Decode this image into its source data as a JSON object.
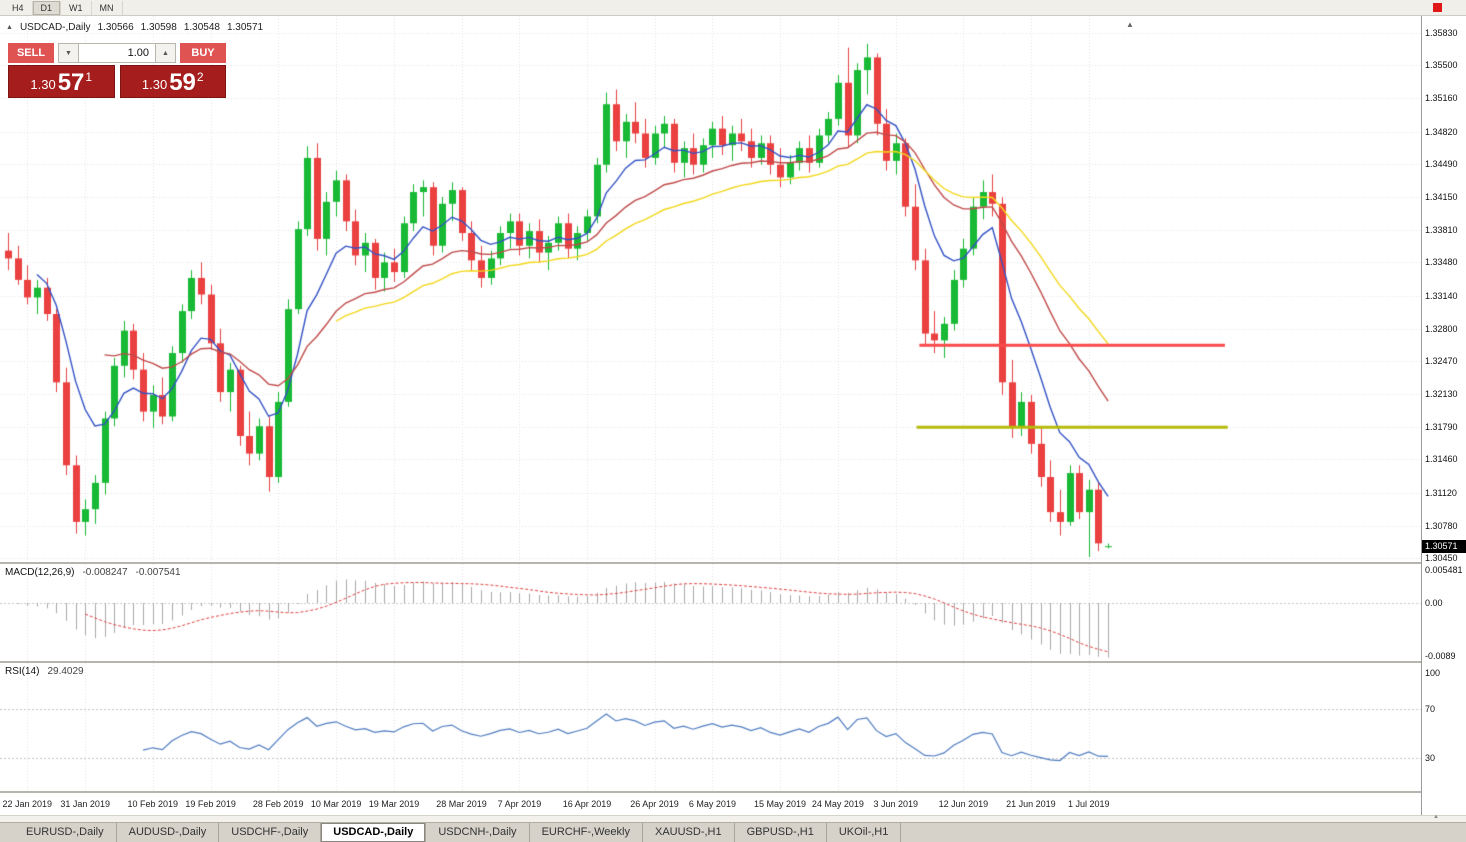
{
  "toolbar": {
    "timeframes": [
      "H4",
      "D1",
      "W1",
      "MN"
    ]
  },
  "chart_header": {
    "symbol": "USDCAD-,Daily",
    "open": "1.30566",
    "high": "1.30598",
    "low": "1.30548",
    "close": "1.30571"
  },
  "trade_panel": {
    "sell_label": "SELL",
    "buy_label": "BUY",
    "volume": "1.00",
    "sell_price": {
      "figure": "1.30",
      "pips": "57",
      "pipette": "1"
    },
    "buy_price": {
      "figure": "1.30",
      "pips": "59",
      "pipette": "2"
    }
  },
  "price_axis": {
    "labels": [
      "1.35830",
      "1.35500",
      "1.35160",
      "1.34820",
      "1.34490",
      "1.34150",
      "1.33810",
      "1.33480",
      "1.33140",
      "1.32800",
      "1.32470",
      "1.32130",
      "1.31790",
      "1.31460",
      "1.31120",
      "1.30780",
      "1.30450"
    ],
    "current": "1.30571"
  },
  "macd_panel": {
    "name": "MACD(12,26,9)",
    "value": "-0.008247",
    "signal": "-0.007541",
    "axis_top": "0.005481",
    "axis_zero": "0.00",
    "axis_bottom": "-0.0089"
  },
  "rsi_panel": {
    "name": "RSI(14)",
    "value": "29.4029",
    "axis": [
      "100",
      "70",
      "30"
    ]
  },
  "tabs": [
    {
      "label": "EURUSD-,Daily",
      "active": false
    },
    {
      "label": "AUDUSD-,Daily",
      "active": false
    },
    {
      "label": "USDCHF-,Daily",
      "active": false
    },
    {
      "label": "USDCAD-,Daily",
      "active": true
    },
    {
      "label": "USDCNH-,Daily",
      "active": false
    },
    {
      "label": "EURCHF-,Weekly",
      "active": false
    },
    {
      "label": "XAUUSD-,H1",
      "active": false
    },
    {
      "label": "GBPUSD-,H1",
      "active": false
    },
    {
      "label": "UKOil-,H1",
      "active": false
    }
  ],
  "colors": {
    "up": "#18b934",
    "down": "#ea4040",
    "macd_hist": "#a9a9a9",
    "macd_signal": "#e04040",
    "rsi_line": "#4f7cc0",
    "accent_red": "#e11818",
    "badge_bg": "#000000",
    "panel_red": "#a51d1d",
    "button_red": "#e05353"
  },
  "chart_data": {
    "type": "candlestick",
    "symbol": "USDCAD",
    "timeframe": "Daily",
    "price_range": [
      1.3045,
      1.3583
    ],
    "candles": [
      [
        1.336,
        1.3378,
        1.334,
        1.3352
      ],
      [
        1.3352,
        1.3365,
        1.3325,
        1.333
      ],
      [
        1.333,
        1.3345,
        1.3305,
        1.3312
      ],
      [
        1.3312,
        1.333,
        1.3295,
        1.3322
      ],
      [
        1.3322,
        1.3332,
        1.3288,
        1.3295
      ],
      [
        1.3295,
        1.33,
        1.3215,
        1.3225
      ],
      [
        1.3225,
        1.324,
        1.313,
        1.314
      ],
      [
        1.314,
        1.315,
        1.307,
        1.3082
      ],
      [
        1.3082,
        1.3105,
        1.3068,
        1.3095
      ],
      [
        1.3095,
        1.313,
        1.308,
        1.3122
      ],
      [
        1.3122,
        1.3195,
        1.311,
        1.3188
      ],
      [
        1.3188,
        1.325,
        1.318,
        1.3242
      ],
      [
        1.3242,
        1.3288,
        1.323,
        1.3278
      ],
      [
        1.3278,
        1.3285,
        1.3228,
        1.3238
      ],
      [
        1.3238,
        1.3255,
        1.3185,
        1.3195
      ],
      [
        1.3195,
        1.3222,
        1.3178,
        1.3212
      ],
      [
        1.3212,
        1.323,
        1.3182,
        1.319
      ],
      [
        1.319,
        1.3262,
        1.3185,
        1.3255
      ],
      [
        1.3255,
        1.3305,
        1.3245,
        1.3298
      ],
      [
        1.3298,
        1.334,
        1.329,
        1.3332
      ],
      [
        1.3332,
        1.3348,
        1.3305,
        1.3315
      ],
      [
        1.3315,
        1.3325,
        1.3258,
        1.3265
      ],
      [
        1.3265,
        1.328,
        1.3205,
        1.3215
      ],
      [
        1.3215,
        1.3245,
        1.3195,
        1.3238
      ],
      [
        1.3238,
        1.3242,
        1.316,
        1.317
      ],
      [
        1.317,
        1.3195,
        1.314,
        1.3152
      ],
      [
        1.3152,
        1.3188,
        1.3145,
        1.318
      ],
      [
        1.318,
        1.319,
        1.3113,
        1.3128
      ],
      [
        1.3128,
        1.3215,
        1.3122,
        1.3205
      ],
      [
        1.3205,
        1.331,
        1.32,
        1.33
      ],
      [
        1.33,
        1.339,
        1.3295,
        1.3382
      ],
      [
        1.3382,
        1.3467,
        1.3375,
        1.3455
      ],
      [
        1.3455,
        1.347,
        1.336,
        1.3372
      ],
      [
        1.3372,
        1.342,
        1.3355,
        1.341
      ],
      [
        1.341,
        1.3442,
        1.3395,
        1.3432
      ],
      [
        1.3432,
        1.3438,
        1.338,
        1.339
      ],
      [
        1.339,
        1.3402,
        1.3345,
        1.3355
      ],
      [
        1.3355,
        1.3378,
        1.3338,
        1.3368
      ],
      [
        1.3368,
        1.3372,
        1.332,
        1.3332
      ],
      [
        1.3332,
        1.3358,
        1.3318,
        1.3348
      ],
      [
        1.3348,
        1.3362,
        1.3328,
        1.3338
      ],
      [
        1.3338,
        1.3395,
        1.3332,
        1.3388
      ],
      [
        1.3388,
        1.3428,
        1.338,
        1.342
      ],
      [
        1.342,
        1.3432,
        1.3395,
        1.3425
      ],
      [
        1.3425,
        1.343,
        1.3355,
        1.3365
      ],
      [
        1.3365,
        1.3415,
        1.3358,
        1.3408
      ],
      [
        1.3408,
        1.343,
        1.339,
        1.3422
      ],
      [
        1.3422,
        1.3425,
        1.337,
        1.3378
      ],
      [
        1.3378,
        1.339,
        1.334,
        1.335
      ],
      [
        1.335,
        1.3365,
        1.3322,
        1.3332
      ],
      [
        1.3332,
        1.336,
        1.3325,
        1.3352
      ],
      [
        1.3352,
        1.3385,
        1.3345,
        1.3378
      ],
      [
        1.3378,
        1.3398,
        1.3362,
        1.339
      ],
      [
        1.339,
        1.3398,
        1.3355,
        1.3365
      ],
      [
        1.3365,
        1.3388,
        1.3352,
        1.338
      ],
      [
        1.338,
        1.3392,
        1.3348,
        1.3358
      ],
      [
        1.3358,
        1.3375,
        1.334,
        1.3368
      ],
      [
        1.3368,
        1.3395,
        1.336,
        1.3388
      ],
      [
        1.3388,
        1.3398,
        1.3352,
        1.3362
      ],
      [
        1.3362,
        1.3385,
        1.335,
        1.3378
      ],
      [
        1.3378,
        1.3402,
        1.337,
        1.3395
      ],
      [
        1.3395,
        1.3455,
        1.3388,
        1.3448
      ],
      [
        1.3448,
        1.3522,
        1.344,
        1.351
      ],
      [
        1.351,
        1.3525,
        1.3462,
        1.3472
      ],
      [
        1.3472,
        1.35,
        1.3455,
        1.3492
      ],
      [
        1.3492,
        1.3512,
        1.347,
        1.348
      ],
      [
        1.348,
        1.3495,
        1.3445,
        1.3455
      ],
      [
        1.3455,
        1.3488,
        1.3448,
        1.348
      ],
      [
        1.348,
        1.3498,
        1.3465,
        1.349
      ],
      [
        1.349,
        1.3495,
        1.344,
        1.345
      ],
      [
        1.345,
        1.3472,
        1.3435,
        1.3465
      ],
      [
        1.3465,
        1.348,
        1.3438,
        1.3448
      ],
      [
        1.3448,
        1.3475,
        1.344,
        1.3468
      ],
      [
        1.3468,
        1.3492,
        1.3455,
        1.3485
      ],
      [
        1.3485,
        1.3498,
        1.3458,
        1.3468
      ],
      [
        1.3468,
        1.3488,
        1.3452,
        1.348
      ],
      [
        1.348,
        1.3495,
        1.3462,
        1.3472
      ],
      [
        1.3472,
        1.3485,
        1.3445,
        1.3455
      ],
      [
        1.3455,
        1.3478,
        1.3448,
        1.347
      ],
      [
        1.347,
        1.3478,
        1.3438,
        1.3448
      ],
      [
        1.3448,
        1.3465,
        1.3425,
        1.3435
      ],
      [
        1.3435,
        1.3458,
        1.3428,
        1.345
      ],
      [
        1.345,
        1.3472,
        1.3442,
        1.3465
      ],
      [
        1.3465,
        1.3478,
        1.344,
        1.345
      ],
      [
        1.345,
        1.3485,
        1.3445,
        1.3478
      ],
      [
        1.3478,
        1.3502,
        1.347,
        1.3495
      ],
      [
        1.3495,
        1.354,
        1.3488,
        1.3532
      ],
      [
        1.3532,
        1.3568,
        1.3465,
        1.3478
      ],
      [
        1.3478,
        1.3552,
        1.347,
        1.3545
      ],
      [
        1.3545,
        1.3572,
        1.352,
        1.3558
      ],
      [
        1.3558,
        1.3562,
        1.3478,
        1.349
      ],
      [
        1.349,
        1.3505,
        1.3442,
        1.3452
      ],
      [
        1.3452,
        1.348,
        1.3438,
        1.347
      ],
      [
        1.347,
        1.3475,
        1.3395,
        1.3405
      ],
      [
        1.3405,
        1.3428,
        1.334,
        1.335
      ],
      [
        1.335,
        1.3362,
        1.3262,
        1.3275
      ],
      [
        1.3275,
        1.3298,
        1.3255,
        1.3268
      ],
      [
        1.3268,
        1.3292,
        1.325,
        1.3285
      ],
      [
        1.3285,
        1.334,
        1.3278,
        1.333
      ],
      [
        1.333,
        1.3372,
        1.3322,
        1.3362
      ],
      [
        1.3362,
        1.3415,
        1.3355,
        1.3405
      ],
      [
        1.3405,
        1.3432,
        1.3392,
        1.342
      ],
      [
        1.342,
        1.3438,
        1.3395,
        1.3408
      ],
      [
        1.3408,
        1.3415,
        1.3212,
        1.3225
      ],
      [
        1.3225,
        1.3248,
        1.3168,
        1.318
      ],
      [
        1.318,
        1.3215,
        1.317,
        1.3205
      ],
      [
        1.3205,
        1.3212,
        1.3152,
        1.3162
      ],
      [
        1.3162,
        1.3178,
        1.3118,
        1.3128
      ],
      [
        1.3128,
        1.3145,
        1.3082,
        1.3092
      ],
      [
        1.3092,
        1.3115,
        1.3068,
        1.3082
      ],
      [
        1.3082,
        1.314,
        1.3078,
        1.3132
      ],
      [
        1.3132,
        1.314,
        1.3085,
        1.3092
      ],
      [
        1.3092,
        1.3125,
        1.3046,
        1.3115
      ],
      [
        1.3115,
        1.3122,
        1.3052,
        1.306
      ],
      [
        1.30566,
        1.30598,
        1.30548,
        1.30571
      ]
    ],
    "date_ticks": [
      {
        "index": 2,
        "label": "22 Jan 2019"
      },
      {
        "index": 8,
        "label": "31 Jan 2019"
      },
      {
        "index": 15,
        "label": "10 Feb 2019"
      },
      {
        "index": 21,
        "label": "19 Feb 2019"
      },
      {
        "index": 28,
        "label": "28 Feb 2019"
      },
      {
        "index": 34,
        "label": "10 Mar 2019"
      },
      {
        "index": 40,
        "label": "19 Mar 2019"
      },
      {
        "index": 47,
        "label": "28 Mar 2019"
      },
      {
        "index": 53,
        "label": "7 Apr 2019"
      },
      {
        "index": 60,
        "label": "16 Apr 2019"
      },
      {
        "index": 67,
        "label": "26 Apr 2019"
      },
      {
        "index": 73,
        "label": "6 May 2019"
      },
      {
        "index": 80,
        "label": "15 May 2019"
      },
      {
        "index": 86,
        "label": "24 May 2019"
      },
      {
        "index": 92,
        "label": "3 Jun 2019"
      },
      {
        "index": 99,
        "label": "12 Jun 2019"
      },
      {
        "index": 106,
        "label": "21 Jun 2019"
      },
      {
        "index": 112,
        "label": "1 Jul 2019"
      }
    ],
    "moving_averages": [
      {
        "type": "ema",
        "period": 8,
        "start": 3,
        "color": "#3352c4"
      },
      {
        "type": "ema",
        "period": 21,
        "start": 10,
        "color": "#c04a4a"
      },
      {
        "type": "ema",
        "period": 34,
        "start": 34,
        "color": "#f2d71b"
      }
    ],
    "hlines": [
      {
        "price": 1.3263,
        "color": "#fa4b4b",
        "thickness": 3,
        "x1_frac": 0.647,
        "x2_frac": 0.862
      },
      {
        "price": 1.3179,
        "color": "#b5bb0b",
        "thickness": 3,
        "x1_frac": 0.645,
        "x2_frac": 0.864
      }
    ],
    "indicators": {
      "macd": {
        "fast": 12,
        "slow": 26,
        "signal": 9,
        "current": -0.008247,
        "current_signal": -0.007541,
        "scale_max": 0.005481,
        "scale_min": -0.0089
      },
      "rsi": {
        "period": 14,
        "levels": [
          70,
          30
        ],
        "current": 29.4029
      }
    }
  }
}
